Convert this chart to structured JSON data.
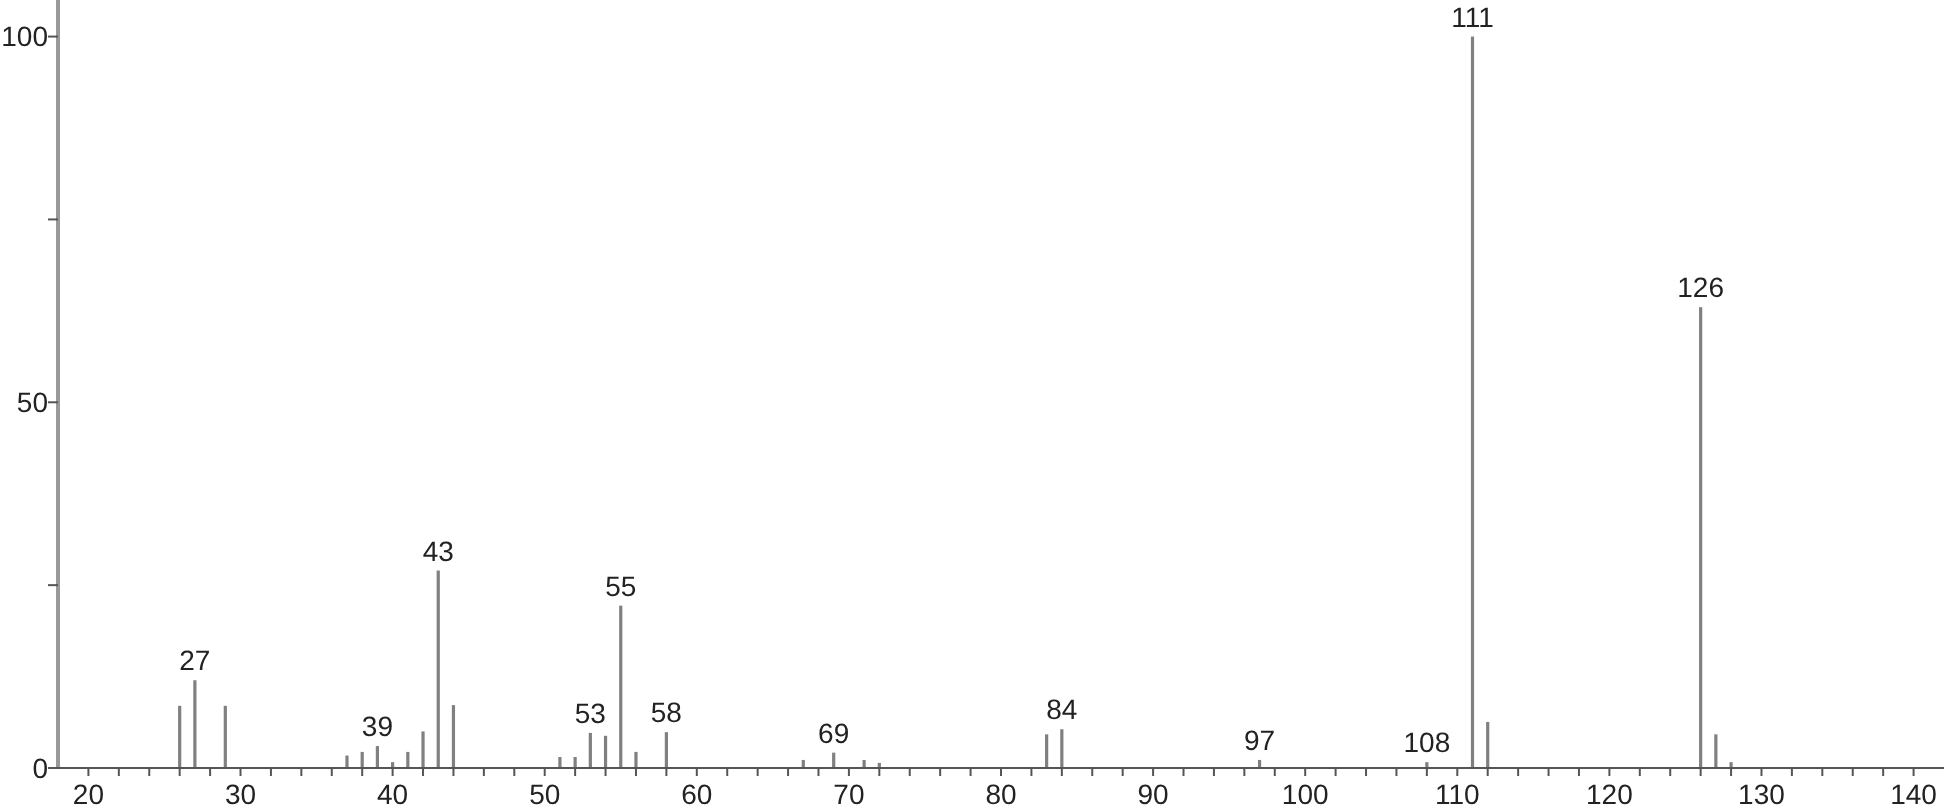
{
  "chart_data": {
    "type": "bar",
    "x": [
      26,
      27,
      29,
      37,
      38,
      39,
      40,
      41,
      42,
      43,
      44,
      51,
      52,
      53,
      54,
      55,
      56,
      58,
      67,
      69,
      71,
      72,
      83,
      84,
      97,
      108,
      111,
      112,
      126,
      127,
      128
    ],
    "values": [
      8.5,
      12,
      8.5,
      1.7,
      2.2,
      3,
      0.8,
      2.2,
      5,
      27,
      8.6,
      1.5,
      1.5,
      4.8,
      4.4,
      22.2,
      2.2,
      4.9,
      1.1,
      2.1,
      1.1,
      0.7,
      4.6,
      5.3,
      1.1,
      0.8,
      100,
      6.3,
      63,
      4.6,
      0.8
    ],
    "color": "#808080",
    "xlim": [
      18,
      142
    ],
    "ylim": [
      0,
      105
    ],
    "xticks": [
      20,
      {
        "value": 22,
        "label": null
      },
      {
        "value": 24,
        "label": null
      },
      {
        "value": 26,
        "label": null
      },
      {
        "value": 28,
        "label": null
      },
      30,
      {
        "value": 32,
        "label": null
      },
      {
        "value": 34,
        "label": null
      },
      {
        "value": 36,
        "label": null
      },
      {
        "value": 38,
        "label": null
      },
      40,
      {
        "value": 42,
        "label": null
      },
      {
        "value": 44,
        "label": null
      },
      {
        "value": 46,
        "label": null
      },
      {
        "value": 48,
        "label": null
      },
      50,
      {
        "value": 52,
        "label": null
      },
      {
        "value": 54,
        "label": null
      },
      {
        "value": 56,
        "label": null
      },
      {
        "value": 58,
        "label": null
      },
      60,
      {
        "value": 62,
        "label": null
      },
      {
        "value": 64,
        "label": null
      },
      {
        "value": 66,
        "label": null
      },
      {
        "value": 68,
        "label": null
      },
      70,
      {
        "value": 72,
        "label": null
      },
      {
        "value": 74,
        "label": null
      },
      {
        "value": 76,
        "label": null
      },
      {
        "value": 78,
        "label": null
      },
      80,
      {
        "value": 82,
        "label": null
      },
      {
        "value": 84,
        "label": null
      },
      {
        "value": 86,
        "label": null
      },
      {
        "value": 88,
        "label": null
      },
      90,
      {
        "value": 92,
        "label": null
      },
      {
        "value": 94,
        "label": null
      },
      {
        "value": 96,
        "label": null
      },
      {
        "value": 98,
        "label": null
      },
      100,
      {
        "value": 102,
        "label": null
      },
      {
        "value": 104,
        "label": null
      },
      {
        "value": 106,
        "label": null
      },
      {
        "value": 108,
        "label": null
      },
      110,
      {
        "value": 112,
        "label": null
      },
      {
        "value": 114,
        "label": null
      },
      {
        "value": 116,
        "label": null
      },
      {
        "value": 118,
        "label": null
      },
      120,
      {
        "value": 122,
        "label": null
      },
      {
        "value": 124,
        "label": null
      },
      {
        "value": 126,
        "label": null
      },
      {
        "value": 128,
        "label": null
      },
      130,
      {
        "value": 132,
        "label": null
      },
      {
        "value": 134,
        "label": null
      },
      {
        "value": 136,
        "label": null
      },
      {
        "value": 138,
        "label": null
      },
      140
    ],
    "yticks": [
      0,
      {
        "value": 25,
        "label": null
      },
      50,
      {
        "value": 75,
        "label": null
      },
      100
    ],
    "annotations": [
      {
        "text": "27",
        "x": 27,
        "y": 12
      },
      {
        "text": "39",
        "x": 39,
        "y": 3
      },
      {
        "text": "43",
        "x": 43,
        "y": 27
      },
      {
        "text": "53",
        "x": 53,
        "y": 4.8
      },
      {
        "text": "55",
        "x": 55,
        "y": 22.2
      },
      {
        "text": "58",
        "x": 58,
        "y": 4.9
      },
      {
        "text": "69",
        "x": 69,
        "y": 2.1
      },
      {
        "text": "84",
        "x": 84,
        "y": 5.3
      },
      {
        "text": "97",
        "x": 97,
        "y": 1.1
      },
      {
        "text": "108",
        "x": 108,
        "y": 0.8
      },
      {
        "text": "111",
        "x": 111,
        "y": 100
      },
      {
        "text": "126",
        "x": 126,
        "y": 63
      }
    ]
  }
}
